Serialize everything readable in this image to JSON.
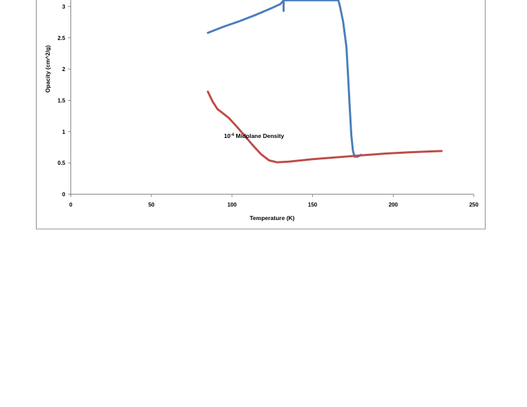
{
  "chart_data": {
    "type": "line",
    "xlabel": "Temperature (K)",
    "ylabel": "Opacity (cm^2/g)",
    "xlim": [
      0,
      250
    ],
    "ylim": [
      0,
      3
    ],
    "x_ticks": [
      "0",
      "50",
      "100",
      "150",
      "200",
      "250"
    ],
    "y_ticks": [
      "0",
      "0.5",
      "1",
      "1.5",
      "2",
      "2.5",
      "3"
    ],
    "grid": false,
    "series": [
      {
        "color": "#4a7ebb",
        "points": [
          [
            85,
            2.58
          ],
          [
            95,
            2.68
          ],
          [
            105,
            2.77
          ],
          [
            115,
            2.87
          ],
          [
            125,
            2.98
          ],
          [
            130,
            3.04
          ],
          [
            131,
            3.07
          ],
          [
            132,
            3.1
          ],
          [
            132,
            2.93
          ],
          [
            132,
            3.1
          ],
          [
            166,
            3.1
          ],
          [
            167,
            3.0
          ],
          [
            169,
            2.75
          ],
          [
            171,
            2.35
          ],
          [
            172,
            1.9
          ],
          [
            173,
            1.4
          ],
          [
            174,
            0.95
          ],
          [
            175,
            0.7
          ],
          [
            176,
            0.6
          ],
          [
            178,
            0.6
          ],
          [
            180,
            0.63
          ]
        ]
      },
      {
        "color": "#be4b48",
        "points": [
          [
            85,
            1.64
          ],
          [
            88,
            1.48
          ],
          [
            91,
            1.36
          ],
          [
            94,
            1.3
          ],
          [
            98,
            1.22
          ],
          [
            103,
            1.08
          ],
          [
            108,
            0.93
          ],
          [
            113,
            0.78
          ],
          [
            118,
            0.64
          ],
          [
            123,
            0.54
          ],
          [
            128,
            0.51
          ],
          [
            135,
            0.52
          ],
          [
            150,
            0.56
          ],
          [
            165,
            0.59
          ],
          [
            180,
            0.62
          ],
          [
            195,
            0.65
          ],
          [
            210,
            0.67
          ],
          [
            230,
            0.69
          ]
        ]
      }
    ],
    "annotations": [
      {
        "text": "Midplane Density",
        "x": 125,
        "y": 3.15
      },
      {
        "text": "10",
        "sup": "-4",
        "text2": "Midplane Density",
        "x": 95,
        "y": 0.9
      }
    ]
  }
}
